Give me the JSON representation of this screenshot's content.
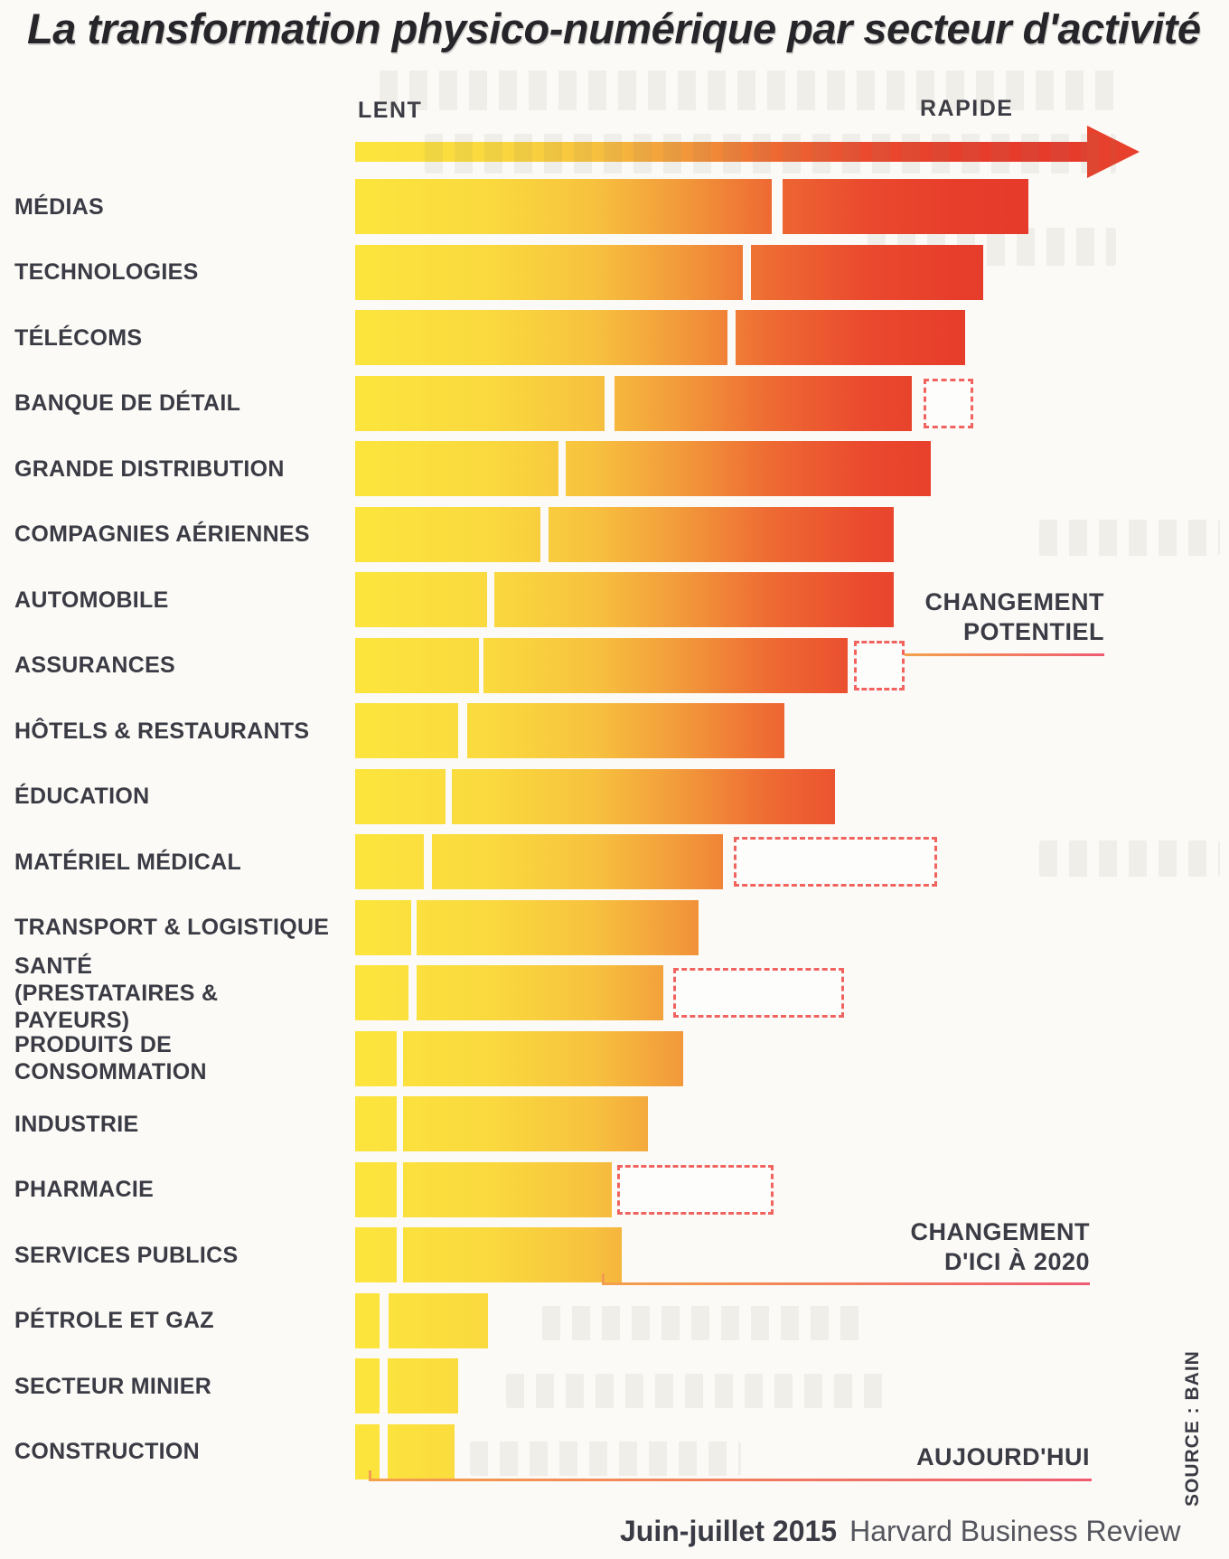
{
  "title": "La transformation physico-numérique par secteur d'activité",
  "axis": {
    "min_label": "LENT",
    "max_label": "RAPIDE"
  },
  "annotations": {
    "potential": {
      "line1": "CHANGEMENT",
      "line2": "POTENTIEL"
    },
    "by2020": {
      "line1": "CHANGEMENT",
      "line2": "D'ICI À 2020"
    },
    "today": {
      "label": "AUJOURD'HUI"
    }
  },
  "source": "SOURCE : BAIN",
  "footer": {
    "issue": "Juin-juillet 2015",
    "publication": "Harvard Business Review"
  },
  "colors": {
    "gradient_start": "#FCE53D",
    "gradient_mid": "#F29A3B",
    "gradient_end": "#E63A2B",
    "dashed_outline": "#F0635E",
    "label_text": "#3A3B44",
    "title_text": "#26262A",
    "connector_start": "#F5A14B",
    "connector_end": "#EE5B72"
  },
  "chart_data": {
    "type": "bar",
    "orientation": "horizontal",
    "title": "La transformation physico-numérique par secteur d'activité",
    "x_axis": {
      "label_min": "LENT",
      "label_max": "RAPIDE",
      "scale": "vitesse de transformation physico-numérique, échelle qualitative 0–100"
    },
    "legend": [
      {
        "key": "today",
        "label": "AUJOURD'HUI",
        "style": "premier segment plein"
      },
      {
        "key": "by2020",
        "label": "CHANGEMENT D'ICI À 2020",
        "style": "second segment plein"
      },
      {
        "key": "potential",
        "label": "CHANGEMENT POTENTIEL",
        "style": "encadré pointillé"
      }
    ],
    "sectors": [
      {
        "label": "MÉDIAS",
        "label_lines": [
          "MÉDIAS"
        ],
        "today": [
          0,
          61.5
        ],
        "by2020": [
          63.1,
          99.3
        ],
        "potential": null
      },
      {
        "label": "TECHNOLOGIES",
        "label_lines": [
          "TECHNOLOGIES"
        ],
        "today": [
          0,
          57.2
        ],
        "by2020": [
          58.4,
          92.7
        ],
        "potential": null
      },
      {
        "label": "TÉLÉCOMS",
        "label_lines": [
          "TÉLÉCOMS"
        ],
        "today": [
          0,
          54.9
        ],
        "by2020": [
          56.1,
          90.0
        ],
        "potential": null
      },
      {
        "label": "BANQUE DE DÉTAIL",
        "label_lines": [
          "BANQUE DE DÉTAIL"
        ],
        "today": [
          0,
          36.8
        ],
        "by2020": [
          38.3,
          82.1
        ],
        "potential": [
          83.9,
          91.2
        ]
      },
      {
        "label": "GRANDE DISTRIBUTION",
        "label_lines": [
          "GRANDE DISTRIBUTION"
        ],
        "today": [
          0,
          30.0
        ],
        "by2020": [
          31.1,
          84.9
        ],
        "potential": null
      },
      {
        "label": "COMPAGNIES AÉRIENNES",
        "label_lines": [
          "COMPAGNIES AÉRIENNES"
        ],
        "today": [
          0,
          27.3
        ],
        "by2020": [
          28.5,
          79.5
        ],
        "potential": null
      },
      {
        "label": "AUTOMOBILE",
        "label_lines": [
          "AUTOMOBILE"
        ],
        "today": [
          0,
          19.5
        ],
        "by2020": [
          20.5,
          79.5
        ],
        "potential": null
      },
      {
        "label": "ASSURANCES",
        "label_lines": [
          "ASSURANCES"
        ],
        "today": [
          0,
          18.3
        ],
        "by2020": [
          18.9,
          72.7
        ],
        "potential": [
          73.6,
          81.1
        ]
      },
      {
        "label": "HÔTELS & RESTAURANTS",
        "label_lines": [
          "HÔTELS & RESTAURANTS"
        ],
        "today": [
          0,
          15.2
        ],
        "by2020": [
          16.5,
          63.3
        ],
        "potential": null
      },
      {
        "label": "ÉDUCATION",
        "label_lines": [
          "ÉDUCATION"
        ],
        "today": [
          0,
          13.3
        ],
        "by2020": [
          14.3,
          70.8
        ],
        "potential": null
      },
      {
        "label": "MATÉRIEL MÉDICAL",
        "label_lines": [
          "MATÉRIEL MÉDICAL"
        ],
        "today": [
          0,
          10.1
        ],
        "by2020": [
          11.3,
          54.3
        ],
        "potential": [
          55.9,
          85.9
        ]
      },
      {
        "label": "TRANSPORT & LOGISTIQUE",
        "label_lines": [
          "TRANSPORT & LOGISTIQUE"
        ],
        "today": [
          0,
          8.3
        ],
        "by2020": [
          9.1,
          50.7
        ],
        "potential": null
      },
      {
        "label": "SANTÉ (PRESTATAIRES & PAYEURS)",
        "label_lines": [
          "SANTÉ",
          "(PRESTATAIRES & PAYEURS)"
        ],
        "today": [
          0,
          7.9
        ],
        "by2020": [
          9.1,
          45.5
        ],
        "potential": [
          46.9,
          72.1
        ]
      },
      {
        "label": "PRODUITS DE CONSOMMATION",
        "label_lines": [
          "PRODUITS DE CONSOMMATION"
        ],
        "today": [
          0,
          6.1
        ],
        "by2020": [
          7.1,
          48.4
        ],
        "potential": null
      },
      {
        "label": "INDUSTRIE",
        "label_lines": [
          "INDUSTRIE"
        ],
        "today": [
          0,
          6.1
        ],
        "by2020": [
          7.1,
          43.2
        ],
        "potential": null
      },
      {
        "label": "PHARMACIE",
        "label_lines": [
          "PHARMACIE"
        ],
        "today": [
          0,
          6.1
        ],
        "by2020": [
          7.1,
          37.9
        ],
        "potential": [
          38.7,
          61.7
        ]
      },
      {
        "label": "SERVICES PUBLICS",
        "label_lines": [
          "SERVICES PUBLICS"
        ],
        "today": [
          0,
          6.1
        ],
        "by2020": [
          7.1,
          39.3
        ],
        "potential": null
      },
      {
        "label": "PÉTROLE ET GAZ",
        "label_lines": [
          "PÉTROLE ET GAZ"
        ],
        "today": [
          0,
          3.6
        ],
        "by2020": [
          4.9,
          19.6
        ],
        "potential": null
      },
      {
        "label": "SECTEUR MINIER",
        "label_lines": [
          "SECTEUR MINIER"
        ],
        "today": [
          0,
          3.6
        ],
        "by2020": [
          4.8,
          15.2
        ],
        "potential": null
      },
      {
        "label": "CONSTRUCTION",
        "label_lines": [
          "CONSTRUCTION"
        ],
        "today": [
          0,
          3.6
        ],
        "by2020": [
          4.8,
          14.7
        ],
        "potential": null
      }
    ]
  }
}
